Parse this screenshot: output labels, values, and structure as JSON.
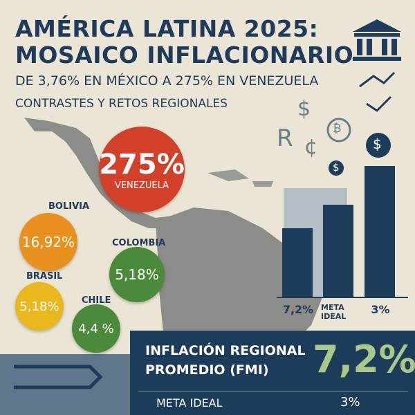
{
  "header": {
    "title_line1": "AMÉRICA LATINA 2025:",
    "title_line2": "MOSAICO INFLACIONARIO",
    "subtitle": "DE 3,76% EN MÉXICO A 275% EN VENEZUELA",
    "tagline": "CONTRASTES Y RETOS REGIONALES"
  },
  "symbols": [
    "$",
    "R",
    "¢",
    "₿",
    "$",
    "$"
  ],
  "bubbles": [
    {
      "country": "VENEZUELA",
      "value": "275%"
    },
    {
      "country": "BOLIVIA",
      "value": "16,92%"
    },
    {
      "country": "COLOMBIA",
      "value": "5,18%"
    },
    {
      "country": "BRASIL",
      "value": "5,18%"
    },
    {
      "country": "CHILE",
      "value": "4,4 %"
    }
  ],
  "bar_labels": [
    "7,2%",
    "META\nIDEAL",
    "3%"
  ],
  "footer": {
    "label_line1": "INFLACIÓN REGIONAL",
    "label_line2": "PROMEDIO (FMI)",
    "value": "7,2%",
    "goal_label": "META IDEAL",
    "goal_value": "3%"
  }
}
